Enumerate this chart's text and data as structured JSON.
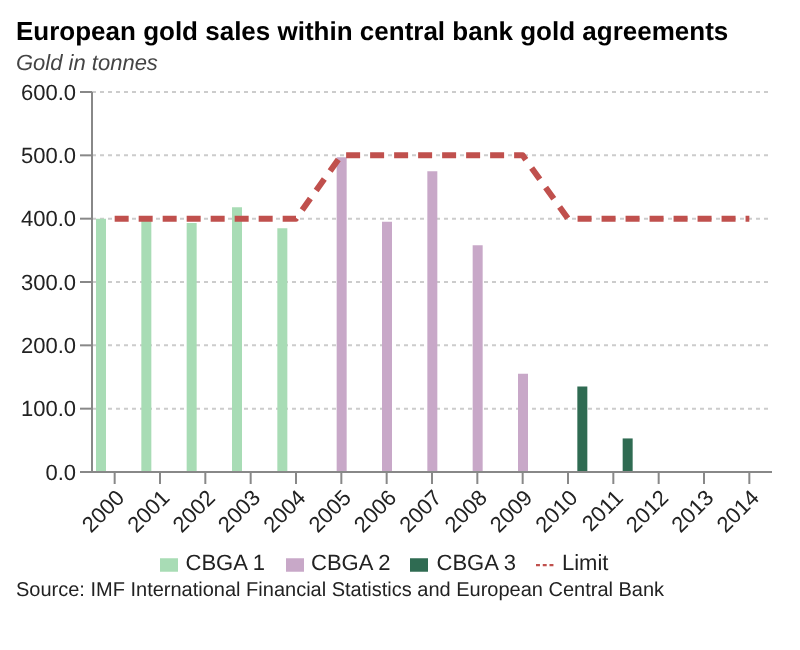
{
  "chart_data": {
    "type": "bar",
    "title": "European gold sales within central bank gold agreements",
    "ylabel": "Gold in tonnes",
    "categories": [
      "2000",
      "2001",
      "2002",
      "2003",
      "2004",
      "2005",
      "2006",
      "2007",
      "2008",
      "2009",
      "2010",
      "2011",
      "2012",
      "2013",
      "2014"
    ],
    "series": [
      {
        "name": "CBGA 1",
        "color": "#a8dcb5",
        "values": [
          400,
          403,
          393,
          418,
          385,
          null,
          null,
          null,
          null,
          null,
          null,
          null,
          null,
          null,
          null
        ]
      },
      {
        "name": "CBGA 2",
        "color": "#c8a8c8",
        "values": [
          null,
          null,
          null,
          null,
          null,
          497,
          395,
          475,
          358,
          155,
          null,
          null,
          null,
          null,
          null
        ]
      },
      {
        "name": "CBGA 3",
        "color": "#2f6b52",
        "values": [
          null,
          null,
          null,
          null,
          null,
          null,
          null,
          null,
          null,
          null,
          135,
          53,
          null,
          null,
          null
        ]
      },
      {
        "name": "Limit",
        "type": "line",
        "color": "#c0504d",
        "line_style": "dashed",
        "values": [
          400,
          400,
          400,
          400,
          400,
          500,
          500,
          500,
          500,
          500,
          400,
          400,
          400,
          400,
          400
        ]
      }
    ],
    "ylim": [
      0,
      600
    ],
    "yticks": [
      {
        "value": 0,
        "label": "0.0"
      },
      {
        "value": 100,
        "label": "100.0"
      },
      {
        "value": 200,
        "label": "200.0"
      },
      {
        "value": 300,
        "label": "300.0"
      },
      {
        "value": 400,
        "label": "400.0"
      },
      {
        "value": 500,
        "label": "500.0"
      },
      {
        "value": 600,
        "label": "600.0"
      }
    ],
    "grid": "y",
    "legend": "bottom",
    "marker": "none",
    "annotations": [
      "Source: IMF International Financial Statistics and European Central Bank"
    ]
  }
}
